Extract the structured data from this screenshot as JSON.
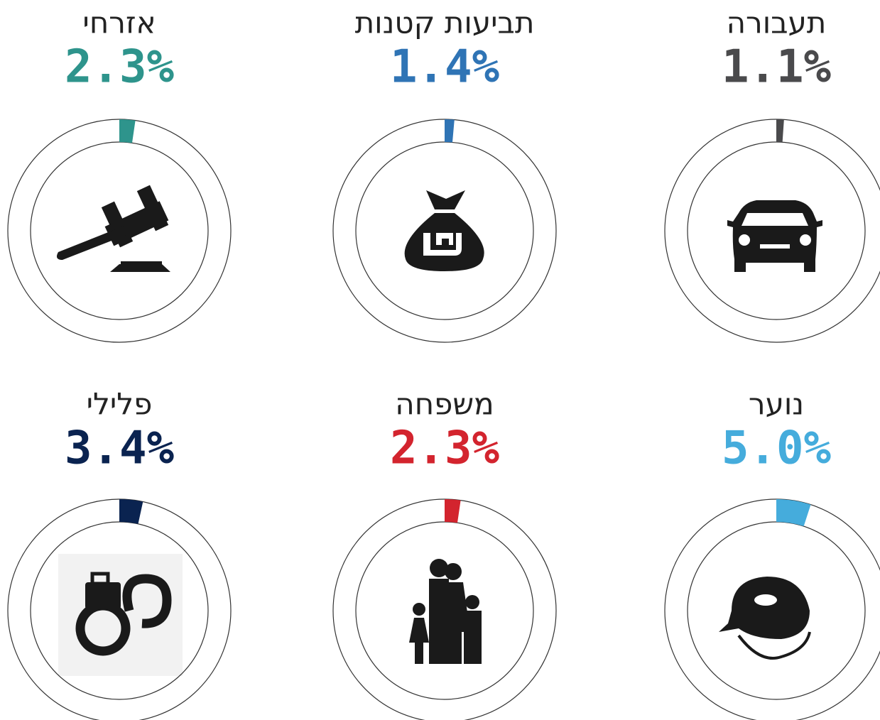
{
  "chart_data": [
    {
      "type": "donut",
      "title": "תעבורה",
      "values": [
        1.1
      ],
      "value_labels": [
        "1.1%"
      ],
      "color": "#4a4a4c"
    },
    {
      "type": "donut",
      "title": "תביעות קטנות",
      "values": [
        1.4
      ],
      "value_labels": [
        "1.4%"
      ],
      "color": "#2f74b5"
    },
    {
      "type": "donut",
      "title": "אזרחי",
      "values": [
        2.3
      ],
      "value_labels": [
        "2.3%"
      ],
      "color": "#2e948c"
    },
    {
      "type": "donut",
      "title": "נוער",
      "values": [
        5.0
      ],
      "value_labels": [
        "5.0%"
      ],
      "color": "#45acdc"
    },
    {
      "type": "donut",
      "title": "משפחה",
      "values": [
        2.3
      ],
      "value_labels": [
        "2.3%"
      ],
      "color": "#d3242e"
    },
    {
      "type": "donut",
      "title": "פלילי",
      "values": [
        3.4
      ],
      "value_labels": [
        "3.4%"
      ],
      "color": "#0a2350"
    }
  ]
}
